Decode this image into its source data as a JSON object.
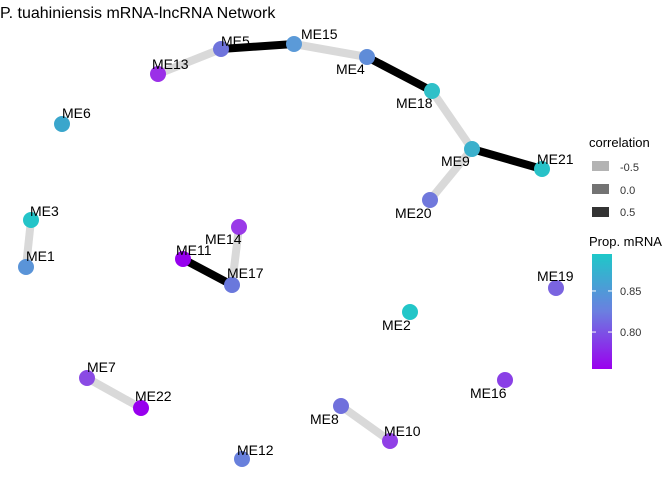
{
  "title": "P. tuahiniensis mRNA-lncRNA Network",
  "colors": {
    "edge_light": "#d9d9d9",
    "edge_dark": "#000000",
    "grad_top": "#1ec8c8",
    "grad_mid": "#6b7fe0",
    "grad_bottom": "#9a00ee"
  },
  "nodes": [
    {
      "id": "ME5",
      "label": "ME5",
      "color": "#6f74dc"
    },
    {
      "id": "ME15",
      "label": "ME15",
      "color": "#5b9ad8"
    },
    {
      "id": "ME13",
      "label": "ME13",
      "color": "#9b30e8"
    },
    {
      "id": "ME4",
      "label": "ME4",
      "color": "#5f8cd8"
    },
    {
      "id": "ME18",
      "label": "ME18",
      "color": "#2fc0c8"
    },
    {
      "id": "ME6",
      "label": "ME6",
      "color": "#3aa6cc"
    },
    {
      "id": "ME9",
      "label": "ME9",
      "color": "#3ab0cc"
    },
    {
      "id": "ME21",
      "label": "ME21",
      "color": "#28c2c8"
    },
    {
      "id": "ME20",
      "label": "ME20",
      "color": "#7078dc"
    },
    {
      "id": "ME3",
      "label": "ME3",
      "color": "#24c4c8"
    },
    {
      "id": "ME1",
      "label": "ME1",
      "color": "#5a94d8"
    },
    {
      "id": "ME14",
      "label": "ME14",
      "color": "#9a3ae8"
    },
    {
      "id": "ME11",
      "label": "ME11",
      "color": "#9600ee"
    },
    {
      "id": "ME17",
      "label": "ME17",
      "color": "#6a78dc"
    },
    {
      "id": "ME19",
      "label": "ME19",
      "color": "#7a64e0"
    },
    {
      "id": "ME2",
      "label": "ME2",
      "color": "#22c6c8"
    },
    {
      "id": "ME16",
      "label": "ME16",
      "color": "#8a40e6"
    },
    {
      "id": "ME7",
      "label": "ME7",
      "color": "#8a4ae4"
    },
    {
      "id": "ME22",
      "label": "ME22",
      "color": "#9800ee"
    },
    {
      "id": "ME8",
      "label": "ME8",
      "color": "#7070dc"
    },
    {
      "id": "ME10",
      "label": "ME10",
      "color": "#9040e6"
    },
    {
      "id": "ME12",
      "label": "ME12",
      "color": "#6880dc"
    }
  ],
  "edges": [
    {
      "from": "ME13",
      "to": "ME5",
      "correlation": -0.5
    },
    {
      "from": "ME5",
      "to": "ME15",
      "correlation": 0.5
    },
    {
      "from": "ME15",
      "to": "ME4",
      "correlation": -0.5
    },
    {
      "from": "ME4",
      "to": "ME18",
      "correlation": 0.5
    },
    {
      "from": "ME18",
      "to": "ME9",
      "correlation": -0.5
    },
    {
      "from": "ME9",
      "to": "ME21",
      "correlation": 0.5
    },
    {
      "from": "ME9",
      "to": "ME20",
      "correlation": -0.5
    },
    {
      "from": "ME3",
      "to": "ME1",
      "correlation": -0.5
    },
    {
      "from": "ME14",
      "to": "ME17",
      "correlation": -0.5
    },
    {
      "from": "ME11",
      "to": "ME17",
      "correlation": 0.5
    },
    {
      "from": "ME7",
      "to": "ME22",
      "correlation": -0.5
    },
    {
      "from": "ME8",
      "to": "ME10",
      "correlation": -0.5
    }
  ],
  "legend_correlation": {
    "title": "correlation",
    "items": [
      {
        "label": "-0.5",
        "color": "#b3b3b3"
      },
      {
        "label": "0.0",
        "color": "#737373"
      },
      {
        "label": "0.5",
        "color": "#333333"
      }
    ]
  },
  "legend_prop": {
    "title": "Prop. mRNA",
    "ticks": [
      {
        "label": "0.85",
        "value": 0.85
      },
      {
        "label": "0.80",
        "value": 0.8
      }
    ],
    "range": [
      0.755,
      0.895
    ]
  }
}
